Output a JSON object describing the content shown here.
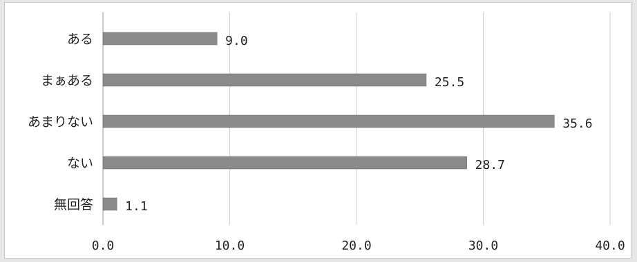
{
  "chart_data": {
    "type": "bar",
    "orientation": "horizontal",
    "categories": [
      "ある",
      "まぁある",
      "あまりない",
      "ない",
      "無回答"
    ],
    "values": [
      9.0,
      25.5,
      35.6,
      28.7,
      1.1
    ],
    "value_labels": [
      "9.0",
      "25.5",
      "35.6",
      "28.7",
      "1.1"
    ],
    "xlim": [
      0,
      40
    ],
    "xticks": [
      0,
      10,
      20,
      30,
      40
    ],
    "xtick_labels": [
      "0.0",
      "10.0",
      "20.0",
      "30.0",
      "40.0"
    ],
    "grid": "vertical",
    "colors": {
      "bar": "#8a8a8a",
      "bar_edge": "#6f6f6f",
      "grid": "#cfcfcf"
    }
  }
}
